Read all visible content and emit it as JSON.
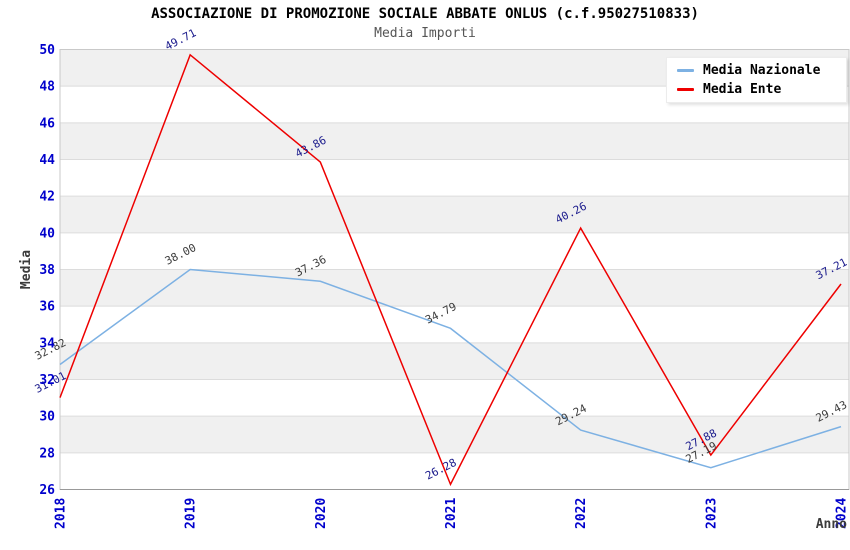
{
  "chart_data": {
    "type": "line",
    "title": "ASSOCIAZIONE DI PROMOZIONE SOCIALE ABBATE ONLUS (c.f.95027510833)",
    "subtitle": "Media Importi",
    "xlabel": "Anno",
    "ylabel": "Media",
    "x": [
      2018,
      2019,
      2020,
      2021,
      2022,
      2023,
      2024
    ],
    "ylim": [
      26,
      50
    ],
    "yticks": [
      26,
      28,
      30,
      32,
      34,
      36,
      38,
      40,
      42,
      44,
      46,
      48,
      50
    ],
    "grid": true,
    "banded_background": true,
    "legend": {
      "position": "top-right"
    },
    "series": [
      {
        "name": "Media Nazionale",
        "color": "#7db1e3",
        "label_color": "#3c3c3c",
        "values": [
          32.82,
          38.0,
          37.36,
          34.79,
          29.24,
          27.19,
          29.43
        ],
        "point_labels": [
          "32.82",
          "38.00",
          "37.36",
          "34.79",
          "29.24",
          "27.19",
          "29.43"
        ]
      },
      {
        "name": "Media Ente",
        "color": "#ee0000",
        "label_color": "#1a1a8c",
        "values": [
          31.01,
          49.71,
          43.86,
          26.28,
          40.26,
          27.88,
          37.21
        ],
        "point_labels": [
          "31.01",
          "49.71",
          "43.86",
          "26.28",
          "40.26",
          "27.88",
          "37.21"
        ]
      }
    ],
    "colors": {
      "title": "#000000",
      "subtitle": "#555555",
      "tick_label": "#0000cc",
      "axis_title": "#3c3c3c",
      "band": "#f0f0f0",
      "gridline": "#dcdcdc",
      "plot_border": "#c9c9c9",
      "bottom_axis": "#999999"
    }
  }
}
